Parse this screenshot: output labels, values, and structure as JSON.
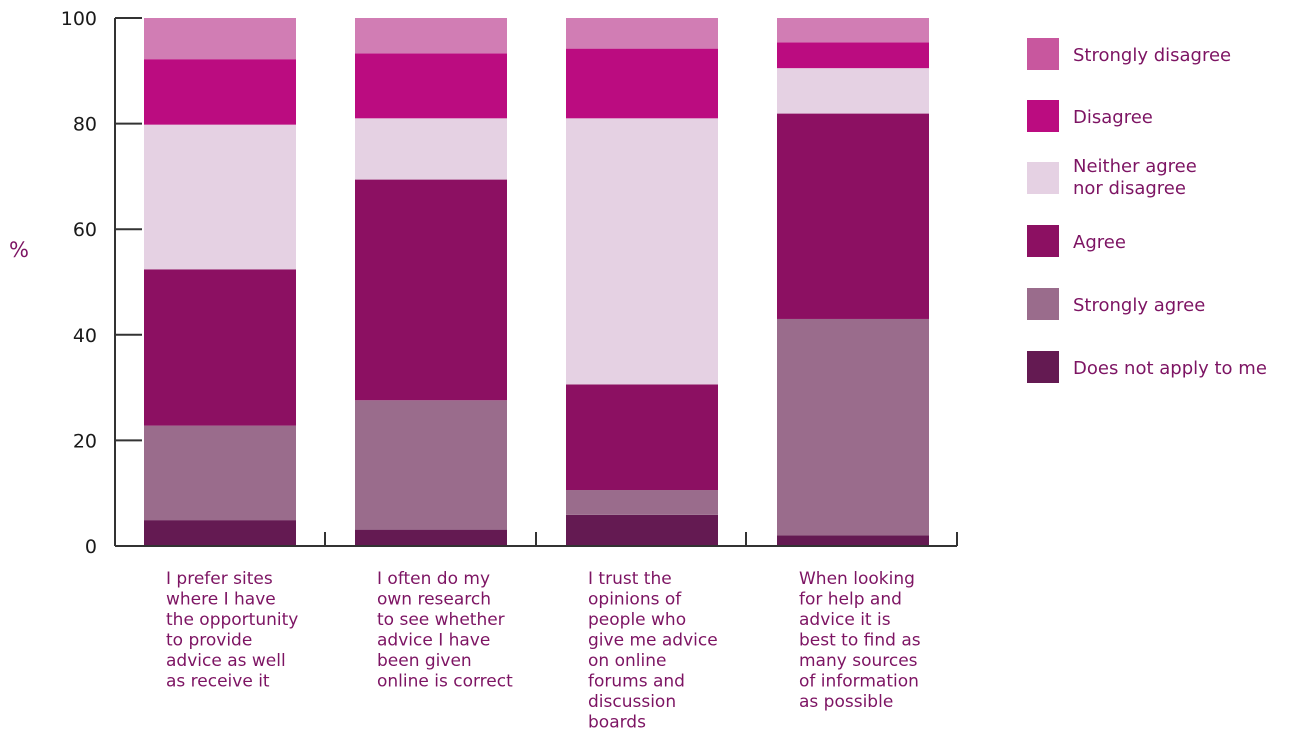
{
  "chart_data": {
    "type": "bar",
    "stacked": true,
    "title": "",
    "xlabel": "",
    "ylabel": "%",
    "ylim": [
      0,
      100
    ],
    "yticks": [
      0,
      20,
      40,
      60,
      80,
      100
    ],
    "grid": false,
    "legend_position": "right",
    "categories": [
      [
        "I prefer sites",
        "where I have",
        "the opportunity",
        "to provide",
        "advice as well",
        "as receive it"
      ],
      [
        "I often do my",
        "own research",
        "to see whether",
        "advice I have",
        "been given",
        "online is correct"
      ],
      [
        "I trust the",
        "opinions of",
        "people who",
        "give me advice",
        "on online",
        "forums and",
        "discussion",
        "boards"
      ],
      [
        "When looking",
        "for help and",
        "advice it is",
        "best to find as",
        "many sources",
        "of information",
        "as possible"
      ]
    ],
    "series": [
      {
        "name": "Does not apply to me",
        "color": "#641a52",
        "values": [
          4.9,
          3.1,
          5.9,
          2.0
        ]
      },
      {
        "name": "Strongly agree",
        "color": "#9a6c8c",
        "values": [
          17.9,
          24.5,
          4.7,
          41.0
        ]
      },
      {
        "name": "Agree",
        "color": "#8c1062",
        "values": [
          29.6,
          41.8,
          20.0,
          38.9
        ]
      },
      {
        "name": "Neither agree nor disagree",
        "color": "#e5d1e3",
        "values": [
          27.4,
          11.6,
          50.4,
          8.6
        ]
      },
      {
        "name": "Disagree",
        "color": "#bb0c80",
        "values": [
          12.4,
          12.3,
          13.2,
          4.9
        ]
      },
      {
        "name": "Strongly disagree",
        "color": "#d17db4",
        "values": [
          7.8,
          6.7,
          5.8,
          4.6
        ]
      }
    ],
    "legend": [
      {
        "label": [
          "Strongly disagree"
        ],
        "color": "#c8579e"
      },
      {
        "label": [
          "Disagree"
        ],
        "color": "#bb0c80"
      },
      {
        "label": [
          "Neither agree",
          "nor disagree"
        ],
        "color": "#e5d1e3"
      },
      {
        "label": [
          "Agree"
        ],
        "color": "#8c1062"
      },
      {
        "label": [
          "Strongly agree"
        ],
        "color": "#9a6c8c"
      },
      {
        "label": [
          "Does not apply to me"
        ],
        "color": "#641a52"
      }
    ]
  }
}
